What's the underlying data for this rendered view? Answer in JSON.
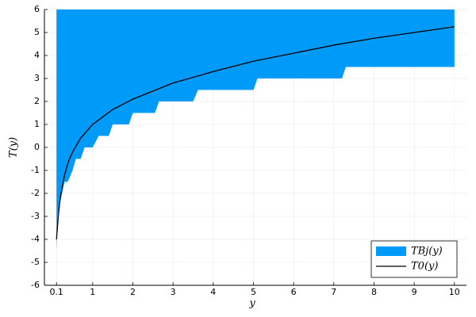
{
  "chart_data": {
    "type": "line",
    "xlabel": "y",
    "ylabel": "T(y)",
    "xlim": [
      -0.2,
      10.3
    ],
    "ylim": [
      -6,
      6
    ],
    "xticks": [
      0.1,
      1,
      2,
      3,
      4,
      5,
      6,
      7,
      8,
      9,
      10
    ],
    "yticks": [
      -6,
      -5,
      -4,
      -3,
      -2,
      -1,
      0,
      1,
      2,
      3,
      4,
      5,
      6
    ],
    "grid": true,
    "legend": "bottom-right",
    "series": [
      {
        "name": "TBj(y)",
        "kind": "band",
        "color": "#009af9",
        "x": [
          0.1,
          0.13,
          0.18,
          0.3,
          0.38,
          0.5,
          0.58,
          0.7,
          0.8,
          1.0,
          1.15,
          1.4,
          1.5,
          1.9,
          2.0,
          2.55,
          2.65,
          3.5,
          3.62,
          5.0,
          5.1,
          7.2,
          7.3,
          10
        ],
        "lower": [
          -4.5,
          -3,
          -2.5,
          -1.5,
          -1.5,
          -1,
          -0.5,
          -0.5,
          0,
          0,
          0.5,
          0.5,
          1,
          1,
          1.5,
          1.5,
          2,
          2,
          2.5,
          2.5,
          3,
          3,
          3.5,
          3.5
        ],
        "upper": [
          6,
          6,
          6,
          6,
          6,
          6,
          6,
          6,
          6,
          6,
          6,
          6,
          6,
          6,
          6,
          6,
          6,
          6,
          6,
          6,
          6,
          6,
          6,
          6
        ]
      },
      {
        "name": "T0(y)",
        "kind": "line",
        "color": "#000000",
        "x": [
          0.1,
          0.15,
          0.2,
          0.3,
          0.4,
          0.5,
          0.7,
          1,
          1.5,
          2,
          3,
          4,
          5,
          6,
          7,
          8,
          9,
          10
        ],
        "values": [
          -4,
          -2.9,
          -2.1,
          -1.2,
          -0.6,
          -0.2,
          0.4,
          1.0,
          1.65,
          2.1,
          2.8,
          3.3,
          3.75,
          4.1,
          4.45,
          4.75,
          5.0,
          5.25
        ]
      }
    ]
  }
}
